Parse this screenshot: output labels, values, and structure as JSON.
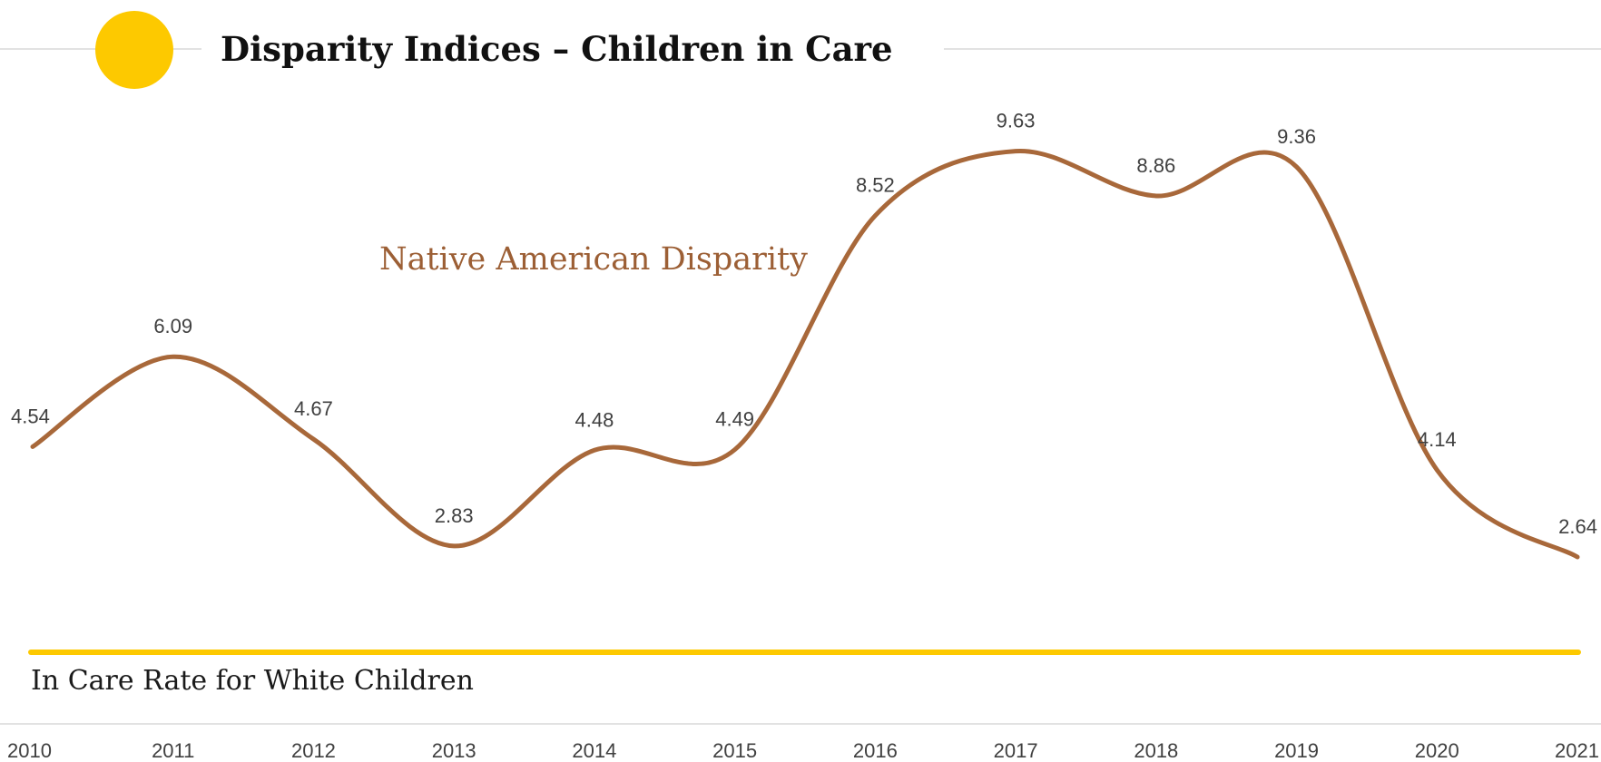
{
  "chart_data": {
    "type": "line",
    "title": "Disparity Indices – Children in Care",
    "categories": [
      "2010",
      "2011",
      "2012",
      "2013",
      "2014",
      "2015",
      "2016",
      "2017",
      "2018",
      "2019",
      "2020",
      "2021"
    ],
    "series": [
      {
        "name": "Native American Disparity",
        "values": [
          4.54,
          6.09,
          4.67,
          2.83,
          4.48,
          4.49,
          8.52,
          9.63,
          8.86,
          9.36,
          4.14,
          2.64
        ],
        "data_labels": [
          "4.54",
          "6.09",
          "4.67",
          "2.83",
          "4.48",
          "4.49",
          "8.52",
          "9.63",
          "8.86",
          "9.36",
          "4.14",
          "2.64"
        ]
      }
    ],
    "reference_line": {
      "label": "In Care Rate for White Children",
      "value": 1
    },
    "ylim": [
      0,
      10.5
    ],
    "smooth": true,
    "grid": false,
    "colors": {
      "series": "#a8683a",
      "series_label": "#9c5f35",
      "reference": "#fdc900",
      "marker": "#fdc900",
      "axis": "#d9d9d9"
    }
  }
}
